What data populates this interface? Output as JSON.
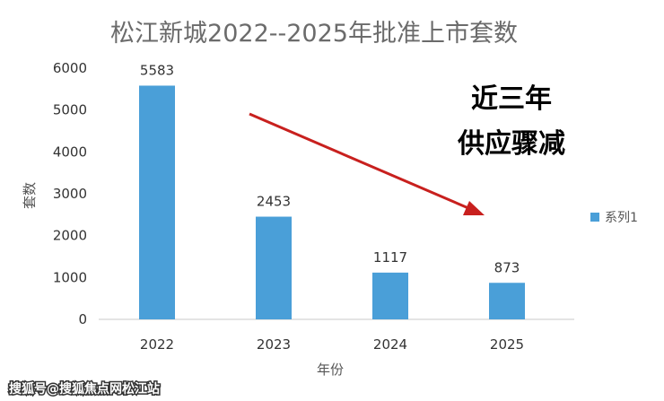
{
  "chart_data": {
    "type": "bar",
    "title": "松江新城2022--2025年批准上市套数",
    "xlabel": "年份",
    "ylabel": "套数",
    "categories": [
      "2022",
      "2023",
      "2024",
      "2025"
    ],
    "series": [
      {
        "name": "系列1",
        "values": [
          5583,
          2453,
          1117,
          873
        ],
        "color": "#4a9fd8"
      }
    ],
    "data_labels": [
      "5583",
      "2453",
      "1117",
      "873"
    ],
    "ylim": [
      0,
      6000
    ],
    "yticks": [
      0,
      1000,
      2000,
      3000,
      4000,
      5000,
      6000
    ],
    "ytick_labels": [
      "0",
      "1000",
      "2000",
      "3000",
      "4000",
      "5000",
      "6000"
    ],
    "grid": false,
    "legend_position": "right",
    "annotations": {
      "callout_line1": "近三年",
      "callout_line2": "供应骤减",
      "arrow_color": "#c8201e",
      "arrow_direction": "down-right"
    }
  },
  "watermark": "搜狐号@搜狐焦点网松江站"
}
